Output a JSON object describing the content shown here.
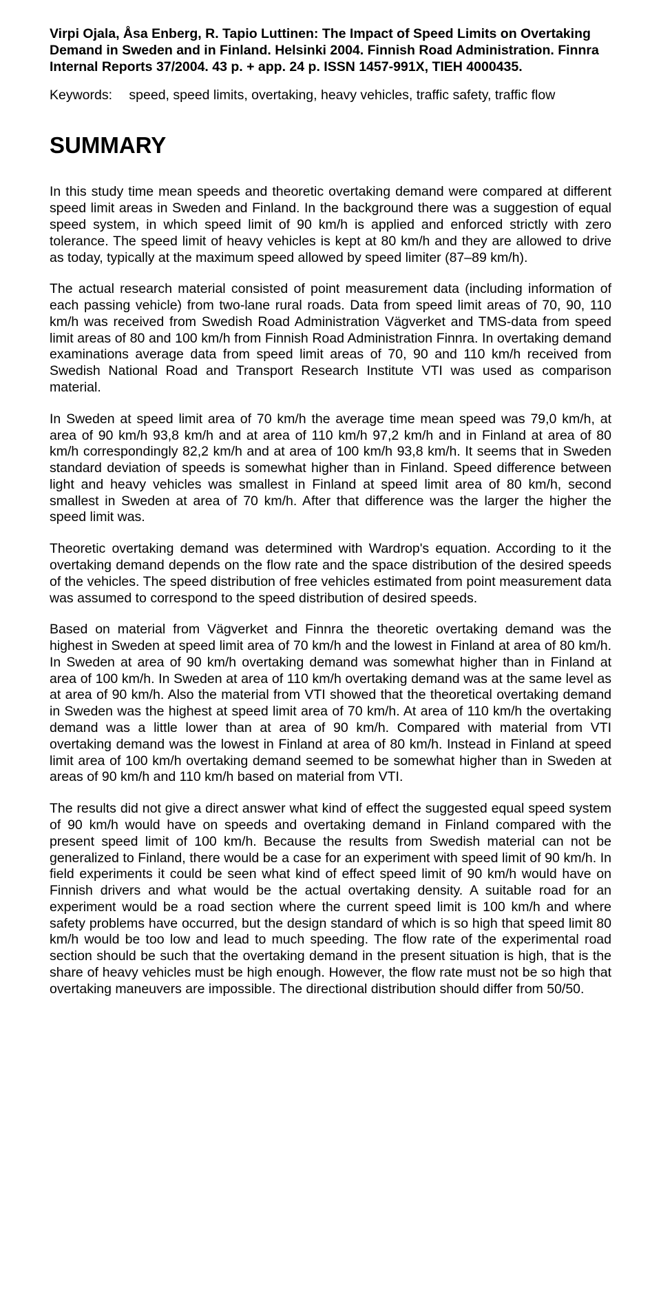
{
  "citation": "Virpi Ojala, Åsa Enberg, R. Tapio Luttinen: The Impact of Speed Limits on Overtaking Demand in Sweden and in Finland. Helsinki 2004. Finnish Road Administration. Finnra Internal Reports 37/2004. 43 p. + app. 24 p. ISSN 1457-991X, TIEH 4000435.",
  "keywords_label": "Keywords:",
  "keywords_value": "speed, speed limits, overtaking, heavy vehicles, traffic safety, traffic flow",
  "summary_heading": "SUMMARY",
  "paragraphs": [
    "In this study time mean speeds and theoretic overtaking demand were compared at different speed limit areas in Sweden and Finland. In the background there was a suggestion of equal speed system, in which speed limit of 90 km/h is applied and enforced strictly with zero tolerance. The speed limit of heavy vehicles is kept at 80 km/h and they are allowed to drive as today, typically at the maximum speed allowed by speed limiter (87–89 km/h).",
    "The actual research material consisted of point measurement data (including information of each passing vehicle) from two-lane rural roads. Data from speed limit areas of 70, 90, 110 km/h was received from Swedish Road Administration Vägverket and TMS-data from speed limit areas of 80 and 100 km/h from Finnish Road Administration Finnra. In overtaking demand examinations average data from speed limit areas of 70, 90 and 110 km/h received from Swedish National Road and Transport Research Institute VTI was used as comparison material.",
    "In Sweden at speed limit area of 70 km/h the average time mean speed was 79,0 km/h, at area of 90 km/h 93,8 km/h and at area of 110 km/h 97,2 km/h and in Finland at area of 80 km/h correspondingly 82,2 km/h and at area of 100 km/h 93,8 km/h. It seems that in Sweden standard deviation of speeds is somewhat higher than in Finland. Speed difference between light and heavy vehicles was smallest in Finland at speed limit area of 80 km/h, second smallest in Sweden at area of 70 km/h. After that difference was the larger the higher the speed limit was.",
    "Theoretic overtaking demand was determined with Wardrop's equation. According to it the overtaking demand depends on the flow rate and the space distribution of the desired speeds of the vehicles. The speed distribution of free vehicles estimated from point measurement data was assumed to correspond to the speed distribution of desired speeds.",
    "Based on material from Vägverket and Finnra the theoretic overtaking demand was the highest in Sweden at speed limit area of 70 km/h and the lowest in Finland at area of 80 km/h. In Sweden at area of 90 km/h overtaking demand was somewhat higher than in Finland at area of 100 km/h. In Sweden at area of 110 km/h overtaking demand was at the same level as at area of 90 km/h. Also the material from VTI showed that the theoretical overtaking demand in Sweden was the highest at speed limit area of 70 km/h. At area of 110 km/h the overtaking demand was a little lower than at area of 90 km/h. Compared with material from VTI overtaking demand was the lowest in Finland at area of 80 km/h. Instead in Finland at speed limit area of 100 km/h overtaking demand seemed to be somewhat higher than in Sweden at areas of 90 km/h and 110 km/h based on material from VTI.",
    "The results did not give a direct answer what kind of effect the suggested equal speed system of 90 km/h would have on speeds and overtaking demand in Finland compared with the present speed limit of 100 km/h. Because the results from Swedish material can not be generalized to Finland, there would be a case for an experiment with speed limit of 90 km/h. In field experiments it could be seen what kind of effect speed limit of 90 km/h would have on Finnish drivers and what would be the actual overtaking density. A suitable road for an experiment would be a road section where the current speed limit is 100 km/h and where safety problems have occurred, but the design standard of which is so high that speed limit 80 km/h would be too low and lead to much speeding. The flow rate of the experimental road section should be such that the overtaking demand in the present situation is high, that is the share of heavy vehicles must be high enough. However, the flow rate must not be so high that overtaking maneuvers are impossible. The directional distribution should differ from 50/50."
  ]
}
